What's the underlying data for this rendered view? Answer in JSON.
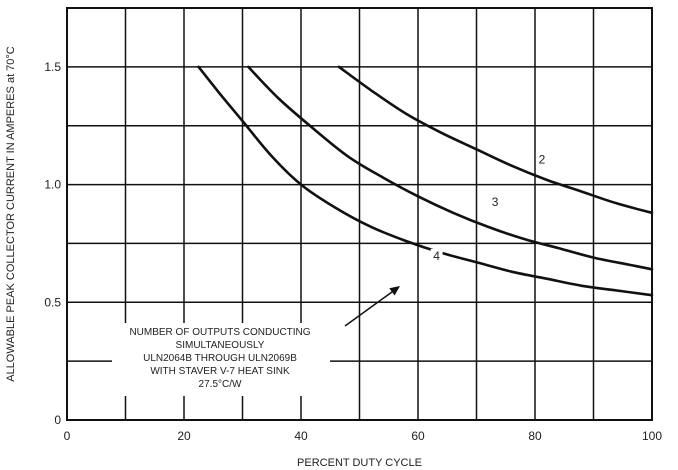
{
  "chart_data": {
    "type": "line",
    "xlabel": "PERCENT DUTY CYCLE",
    "ylabel": "ALLOWABLE PEAK COLLECTOR CURRENT IN AMPERES at 70°C",
    "xlim": [
      0,
      100
    ],
    "ylim": [
      0,
      1.75
    ],
    "x_ticks": [
      "0",
      "20",
      "40",
      "60",
      "80",
      "100"
    ],
    "y_ticks": [
      {
        "value": 0,
        "label": "0"
      },
      {
        "value": 0.5,
        "label": "0.5"
      },
      {
        "value": 1.0,
        "label": "1.0"
      },
      {
        "value": 1.5,
        "label": "1.5"
      }
    ],
    "grid": true,
    "series": [
      {
        "name": "2",
        "x": [
          46.5,
          52,
          58,
          64,
          70,
          76,
          82,
          88,
          94,
          100
        ],
        "y": [
          1.5,
          1.4,
          1.3,
          1.22,
          1.15,
          1.08,
          1.02,
          0.97,
          0.92,
          0.88
        ]
      },
      {
        "name": "3",
        "x": [
          31,
          36,
          42,
          48,
          54,
          60,
          66,
          72,
          78,
          84,
          90,
          96,
          100
        ],
        "y": [
          1.5,
          1.37,
          1.24,
          1.12,
          1.03,
          0.95,
          0.88,
          0.82,
          0.77,
          0.73,
          0.69,
          0.66,
          0.64
        ]
      },
      {
        "name": "4",
        "x": [
          22.5,
          26,
          30,
          35,
          40,
          46,
          52,
          58,
          64,
          70,
          76,
          82,
          88,
          94,
          100
        ],
        "y": [
          1.5,
          1.39,
          1.27,
          1.12,
          1.0,
          0.9,
          0.82,
          0.76,
          0.71,
          0.67,
          0.63,
          0.6,
          0.57,
          0.55,
          0.53
        ]
      }
    ],
    "annotation": {
      "lines": [
        "NUMBER OF OUTPUTS CONDUCTING",
        "SIMULTANEOUSLY",
        "ULN2064B THROUGH ULN2069B",
        "WITH STAVER V-7 HEAT SINK",
        "27.5°C/W"
      ]
    }
  }
}
